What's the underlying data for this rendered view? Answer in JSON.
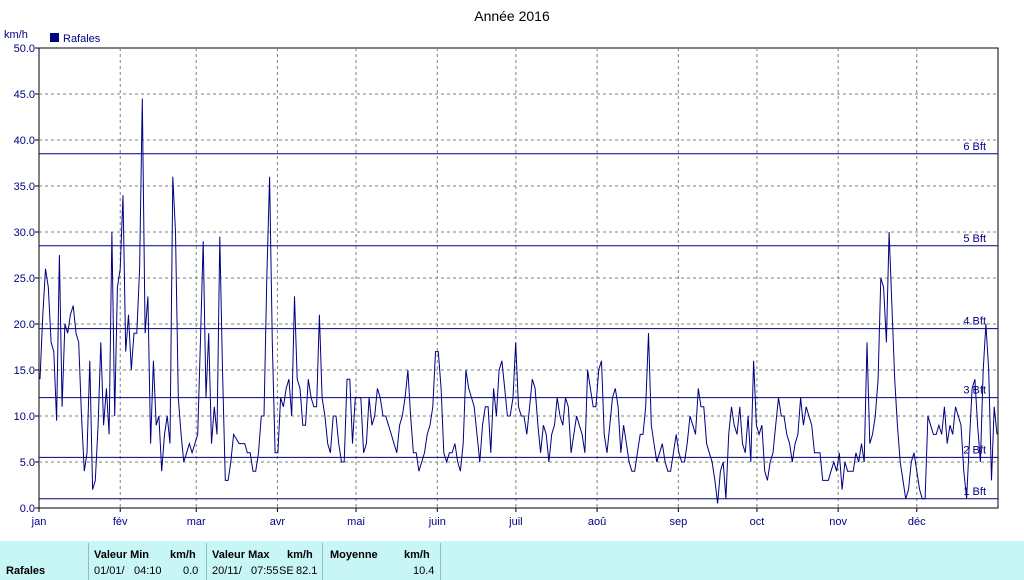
{
  "chart_data": {
    "type": "line",
    "title": "Année 2016",
    "ylabel": "km/h",
    "ylim": [
      0,
      50
    ],
    "yticks": [
      "0.0",
      "5.0",
      "10.0",
      "15.0",
      "20.0",
      "25.0",
      "30.0",
      "35.0",
      "40.0",
      "45.0",
      "50.0"
    ],
    "xlabels": [
      "jan",
      "fév",
      "mar",
      "avr",
      "mai",
      "juin",
      "juil",
      "aoû",
      "sep",
      "oct",
      "nov",
      "déc"
    ],
    "grid": true,
    "legend_position": "top-left",
    "series": [
      {
        "name": "Rafales",
        "color": "#000080",
        "values": [
          14,
          21,
          26,
          24,
          18,
          17,
          9.5,
          27.5,
          11,
          20,
          19,
          21,
          22,
          19,
          18,
          10,
          4,
          6,
          16,
          2,
          3,
          9,
          18,
          9,
          13,
          8,
          30,
          10,
          24,
          26,
          34,
          17,
          21,
          15,
          19,
          19,
          26,
          44.5,
          19,
          23,
          7,
          16,
          9,
          10,
          4,
          8,
          10,
          7,
          36,
          30,
          12,
          8,
          5,
          6,
          7,
          6,
          7,
          8,
          18,
          29,
          12,
          19,
          7,
          11,
          8,
          29.5,
          15,
          3,
          3,
          5,
          8,
          7.5,
          7,
          7,
          7,
          6,
          6,
          4,
          4,
          6,
          10,
          10,
          25,
          36,
          18,
          6,
          6,
          12,
          11,
          13,
          14,
          10,
          23,
          14,
          13,
          9,
          9,
          14,
          12,
          11,
          11,
          21,
          12,
          10,
          7,
          6,
          10,
          10,
          7,
          5,
          5,
          14,
          14,
          7,
          12,
          12,
          12,
          6,
          7,
          12,
          9,
          10,
          13,
          12,
          10,
          10,
          9,
          8,
          7,
          6,
          9,
          10,
          12,
          15,
          10,
          6,
          6,
          4,
          5,
          6,
          8,
          9,
          11,
          17,
          17,
          13,
          6,
          5,
          6,
          6,
          7,
          5,
          4,
          7,
          15,
          13,
          12,
          11,
          8,
          5,
          9,
          11,
          11,
          6,
          13,
          10,
          15,
          16,
          13,
          10,
          10,
          12,
          18,
          11,
          10,
          10,
          8,
          11,
          14,
          13,
          9,
          6,
          9,
          8,
          5,
          8,
          9,
          12,
          10,
          9,
          12,
          11,
          6,
          8,
          10,
          9,
          8,
          6,
          15,
          13,
          11,
          11,
          15,
          16,
          8,
          6,
          9,
          12,
          13,
          11,
          6,
          9,
          7,
          5,
          4,
          4,
          6,
          8,
          8,
          11,
          19,
          9,
          7,
          5,
          6,
          7,
          5,
          4,
          4,
          6,
          8,
          6,
          5,
          5,
          7,
          10,
          9,
          8,
          13,
          11,
          11,
          7,
          6,
          5,
          3,
          0.5,
          4,
          5,
          1,
          8,
          11,
          9,
          8,
          11,
          7,
          6,
          10,
          5,
          16,
          9,
          8,
          9,
          4,
          3,
          5,
          6,
          9,
          12,
          10,
          10,
          8,
          7,
          5,
          7,
          8,
          12,
          9,
          11,
          10,
          9,
          6,
          6,
          6,
          3,
          3,
          3,
          4,
          5,
          4,
          6,
          2,
          5,
          4,
          4,
          4,
          6,
          5,
          7,
          5,
          18,
          7,
          8,
          10,
          14,
          25,
          24,
          18,
          30,
          22,
          14,
          9,
          5,
          3,
          1,
          2,
          5,
          6,
          4,
          2,
          1,
          1,
          10,
          9,
          8,
          8,
          9,
          8,
          11,
          7,
          9,
          8,
          11,
          10,
          9,
          4,
          1,
          7,
          13,
          14,
          9,
          5,
          15,
          20,
          15,
          3,
          11,
          8
        ]
      }
    ],
    "thresholds": [
      {
        "label": "1 Bft",
        "value": 1.0
      },
      {
        "label": "2 Bft",
        "value": 5.5
      },
      {
        "label": "3 Bft",
        "value": 12.0
      },
      {
        "label": "4 Bft",
        "value": 19.5
      },
      {
        "label": "5 Bft",
        "value": 28.5
      },
      {
        "label": "6 Bft",
        "value": 38.5
      }
    ]
  },
  "footer": {
    "row_label": "Rafales",
    "min_header": "Valeur Min",
    "min_unit": "km/h",
    "min_date": "01/01/",
    "min_time": "04:10",
    "min_value": "0.0",
    "max_header": "Valeur Max",
    "max_unit": "km/h",
    "max_date": "20/11/",
    "max_time": "07:55",
    "max_dir": "SE",
    "max_value": "82.1",
    "avg_header": "Moyenne",
    "avg_unit": "km/h",
    "avg_value": "10.4"
  }
}
